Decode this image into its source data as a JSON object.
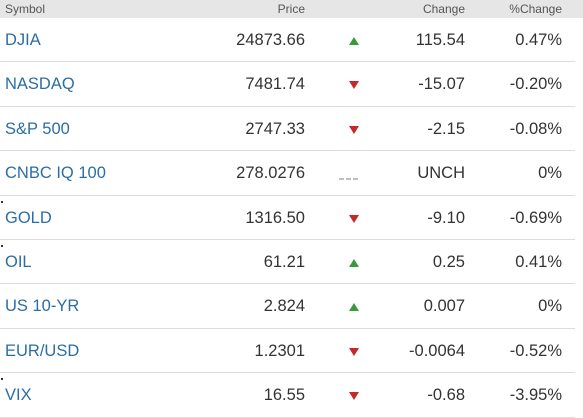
{
  "table": {
    "header": [
      "Symbol",
      "Price",
      "Change",
      "%Change"
    ],
    "rows": [
      [
        "DJIA",
        "24873.66",
        "115.54",
        "0.47%"
      ],
      [
        "NASDAQ",
        "7481.74",
        "-15.07",
        "-0.20%"
      ],
      [
        "S&P 500",
        "2747.33",
        "-2.15",
        "-0.08%"
      ],
      [
        "CNBC IQ 100",
        "278.0276",
        "UNCH",
        "0%"
      ],
      [
        "GOLD",
        "1316.50",
        "-9.10",
        "-0.69%"
      ],
      [
        "OIL",
        "61.21",
        "0.25",
        "0.41%"
      ],
      [
        "US 10-YR",
        "2.824",
        "0.007",
        "0%"
      ],
      [
        "EUR/USD",
        "1.2301",
        "-0.0064",
        "-0.52%"
      ],
      [
        "VIX",
        "16.55",
        "-0.68",
        "-3.95%"
      ]
    ]
  }
}
